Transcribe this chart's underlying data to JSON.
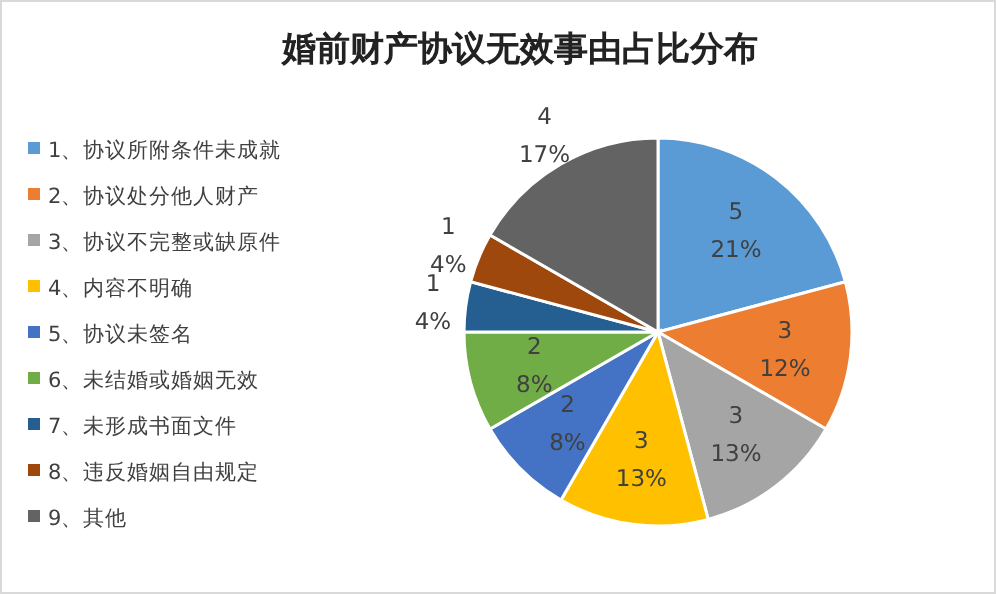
{
  "chart_data": {
    "type": "pie",
    "title": "婚前财产协议无效事由占比分布",
    "categories": [
      "1、协议所附条件未成就",
      "2、协议处分他人财产",
      "3、协议不完整或缺原件",
      "4、内容不明确",
      "5、协议未签名",
      "6、未结婚或婚姻无效",
      "7、未形成书面文件",
      "8、违反婚姻自由规定",
      "9、其他"
    ],
    "values": [
      5,
      3,
      3,
      3,
      2,
      2,
      1,
      1,
      4
    ],
    "value_labels": [
      "5\n21%",
      "3\n12%",
      "3\n13%",
      "3\n13%",
      "2\n8%",
      "2\n8%",
      "1\n4%",
      "1\n4%",
      "4\n17%"
    ],
    "colors": [
      "#5b9bd5",
      "#ed7d31",
      "#a5a5a5",
      "#ffc000",
      "#4472c4",
      "#70ad47",
      "#255e91",
      "#9e480e",
      "#636363"
    ],
    "legend": "left"
  }
}
